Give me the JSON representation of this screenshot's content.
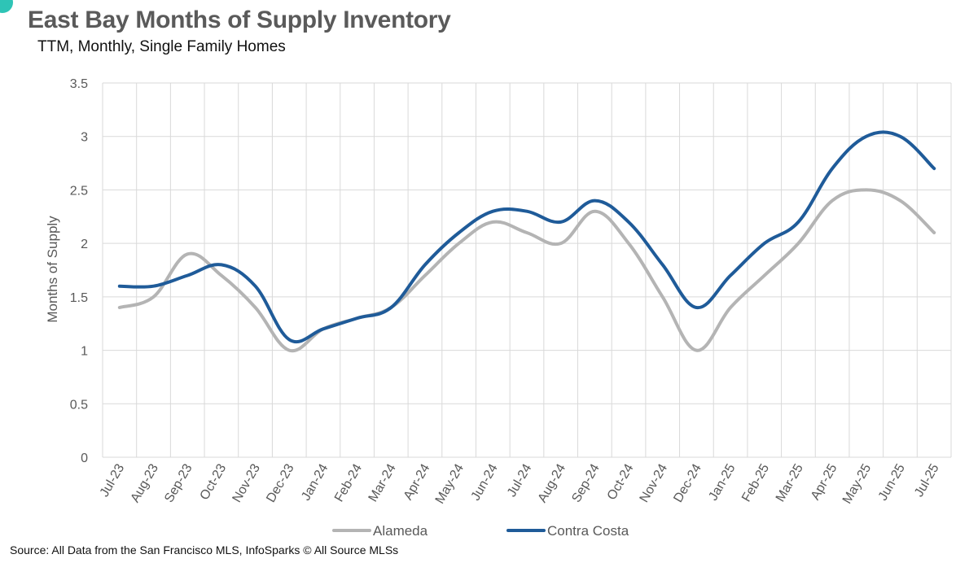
{
  "header": {
    "title": "East Bay Months of Supply Inventory",
    "subtitle": "TTM, Monthly, Single Family Homes"
  },
  "footer": {
    "source": "Source: All Data from the San Francisco MLS, InfoSparks © All Source MLSs"
  },
  "chart_data": {
    "type": "line",
    "title": "East Bay Months of Supply Inventory",
    "subtitle": "TTM, Monthly, Single Family Homes",
    "xlabel": "",
    "ylabel": "Months of Supply",
    "ylim": [
      0,
      3.5
    ],
    "yticks": [
      "0",
      "0.5",
      "1",
      "1.5",
      "2",
      "2.5",
      "3",
      "3.5"
    ],
    "grid": true,
    "legend_position": "bottom",
    "categories": [
      "Jul-23",
      "Aug-23",
      "Sep-23",
      "Oct-23",
      "Nov-23",
      "Dec-23",
      "Jan-24",
      "Feb-24",
      "Mar-24",
      "Apr-24",
      "May-24",
      "Jun-24",
      "Jul-24",
      "Aug-24",
      "Sep-24",
      "Oct-24",
      "Nov-24",
      "Dec-24",
      "Jan-25",
      "Feb-25",
      "Mar-25",
      "Apr-25",
      "May-25",
      "Jun-25",
      "Jul-25"
    ],
    "series": [
      {
        "name": "Alameda",
        "color": "#b4b4b4",
        "values": [
          1.4,
          1.5,
          1.9,
          1.7,
          1.4,
          1.0,
          1.2,
          1.3,
          1.4,
          1.7,
          2.0,
          2.2,
          2.1,
          2.0,
          2.3,
          2.0,
          1.5,
          1.0,
          1.4,
          1.7,
          2.0,
          2.4,
          2.5,
          2.4,
          2.1
        ]
      },
      {
        "name": "Contra Costa",
        "color": "#1f5b99",
        "values": [
          1.6,
          1.6,
          1.7,
          1.8,
          1.6,
          1.1,
          1.2,
          1.3,
          1.4,
          1.8,
          2.1,
          2.3,
          2.3,
          2.2,
          2.4,
          2.2,
          1.8,
          1.4,
          1.7,
          2.0,
          2.2,
          2.7,
          3.0,
          3.0,
          2.7
        ]
      }
    ]
  }
}
